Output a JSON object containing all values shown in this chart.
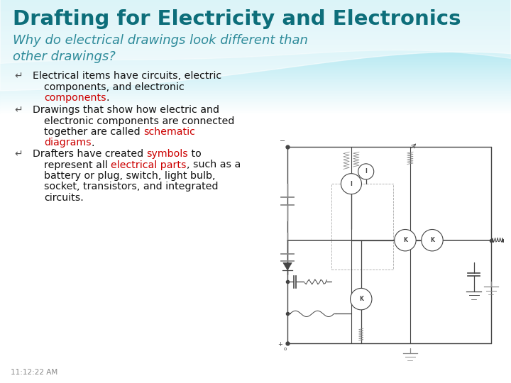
{
  "title": "Drafting for Electricity and Electronics",
  "subtitle": "Why do electrical drawings look different than\nother drawings?",
  "title_color": "#0d6e7a",
  "subtitle_color": "#2e8b9a",
  "bg_color": "#ffffff",
  "highlight_red": "#cc0000",
  "timestamp": "11:12:22 AM",
  "bullet_icon_color": "#555555",
  "text_color": "#111111",
  "circuit_color": "#444444",
  "circuit_gray": "#888888"
}
